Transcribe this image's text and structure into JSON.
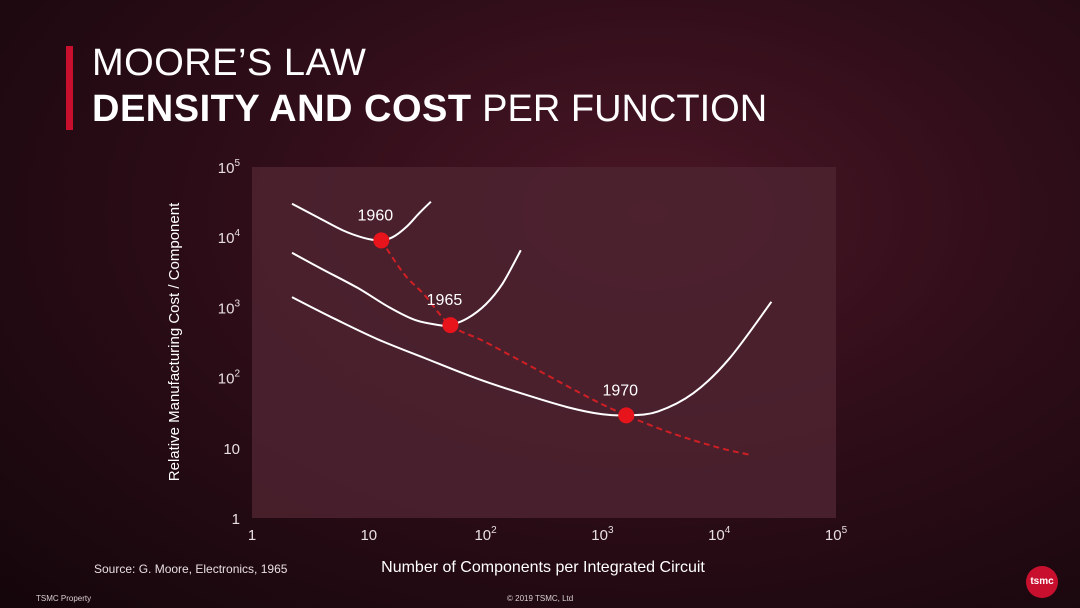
{
  "header": {
    "line1": "MOORE’S LAW",
    "line2_bold": "DENSITY AND COST",
    "line2_rest": " PER FUNCTION"
  },
  "footer": {
    "source": "Source: G. Moore, Electronics, 1965",
    "property": "TSMC Property",
    "copyright": "© 2019 TSMC, Ltd",
    "logo_text": "tsmc"
  },
  "colors": {
    "accent": "#c8102e",
    "plot_area": "#4e2330",
    "curve": "#ffffff",
    "trend": "#d01f24",
    "marker": "#e8141c"
  },
  "chart_data": {
    "type": "line",
    "title": "",
    "xlabel": "Number of Components per Integrated Circuit",
    "ylabel": "Relative Manufacturing Cost / Component",
    "xscale": "log",
    "yscale": "log",
    "xlim": [
      1,
      100000
    ],
    "ylim": [
      1,
      100000
    ],
    "x_ticks": [
      {
        "value": 1,
        "base": "1",
        "exp": ""
      },
      {
        "value": 10,
        "base": "10",
        "exp": ""
      },
      {
        "value": 100,
        "base": "10",
        "exp": "2"
      },
      {
        "value": 1000,
        "base": "10",
        "exp": "3"
      },
      {
        "value": 10000,
        "base": "10",
        "exp": "4"
      },
      {
        "value": 100000,
        "base": "10",
        "exp": "5"
      }
    ],
    "y_ticks": [
      {
        "value": 1,
        "base": "1",
        "exp": ""
      },
      {
        "value": 10,
        "base": "10",
        "exp": ""
      },
      {
        "value": 100,
        "base": "10",
        "exp": "2"
      },
      {
        "value": 1000,
        "base": "10",
        "exp": "3"
      },
      {
        "value": 10000,
        "base": "10",
        "exp": "4"
      },
      {
        "value": 100000,
        "base": "10",
        "exp": "5"
      }
    ],
    "grid": false,
    "series": [
      {
        "label": "1960",
        "x": [
          2.2,
          3.5,
          6,
          9,
          12.5,
          16,
          21,
          27,
          34
        ],
        "y": [
          30000,
          20000,
          12500,
          9800,
          9000,
          10000,
          14000,
          22000,
          32000
        ]
      },
      {
        "label": "1965",
        "x": [
          2.2,
          4,
          8,
          15,
          25,
          40,
          50,
          70,
          100,
          140,
          200
        ],
        "y": [
          6000,
          3500,
          1900,
          1000,
          660,
          560,
          560,
          700,
          1100,
          2200,
          6500
        ]
      },
      {
        "label": "1970",
        "x": [
          2.2,
          5,
          12,
          30,
          80,
          200,
          500,
          1000,
          1700,
          3000,
          6000,
          12000,
          28000
        ],
        "y": [
          1400,
          700,
          350,
          190,
          100,
          60,
          38,
          30,
          29,
          33,
          60,
          180,
          1200
        ]
      }
    ],
    "trend": {
      "x": [
        12.8,
        20,
        30,
        50,
        100,
        300,
        800,
        1600,
        4000,
        10000,
        18000
      ],
      "y": [
        9000,
        3000,
        1500,
        560,
        320,
        120,
        50,
        29,
        16,
        10,
        8
      ]
    },
    "points": [
      {
        "year": "1960",
        "x": 12.8,
        "y": 9000
      },
      {
        "year": "1965",
        "x": 50,
        "y": 560
      },
      {
        "year": "1970",
        "x": 1600,
        "y": 29
      }
    ]
  }
}
